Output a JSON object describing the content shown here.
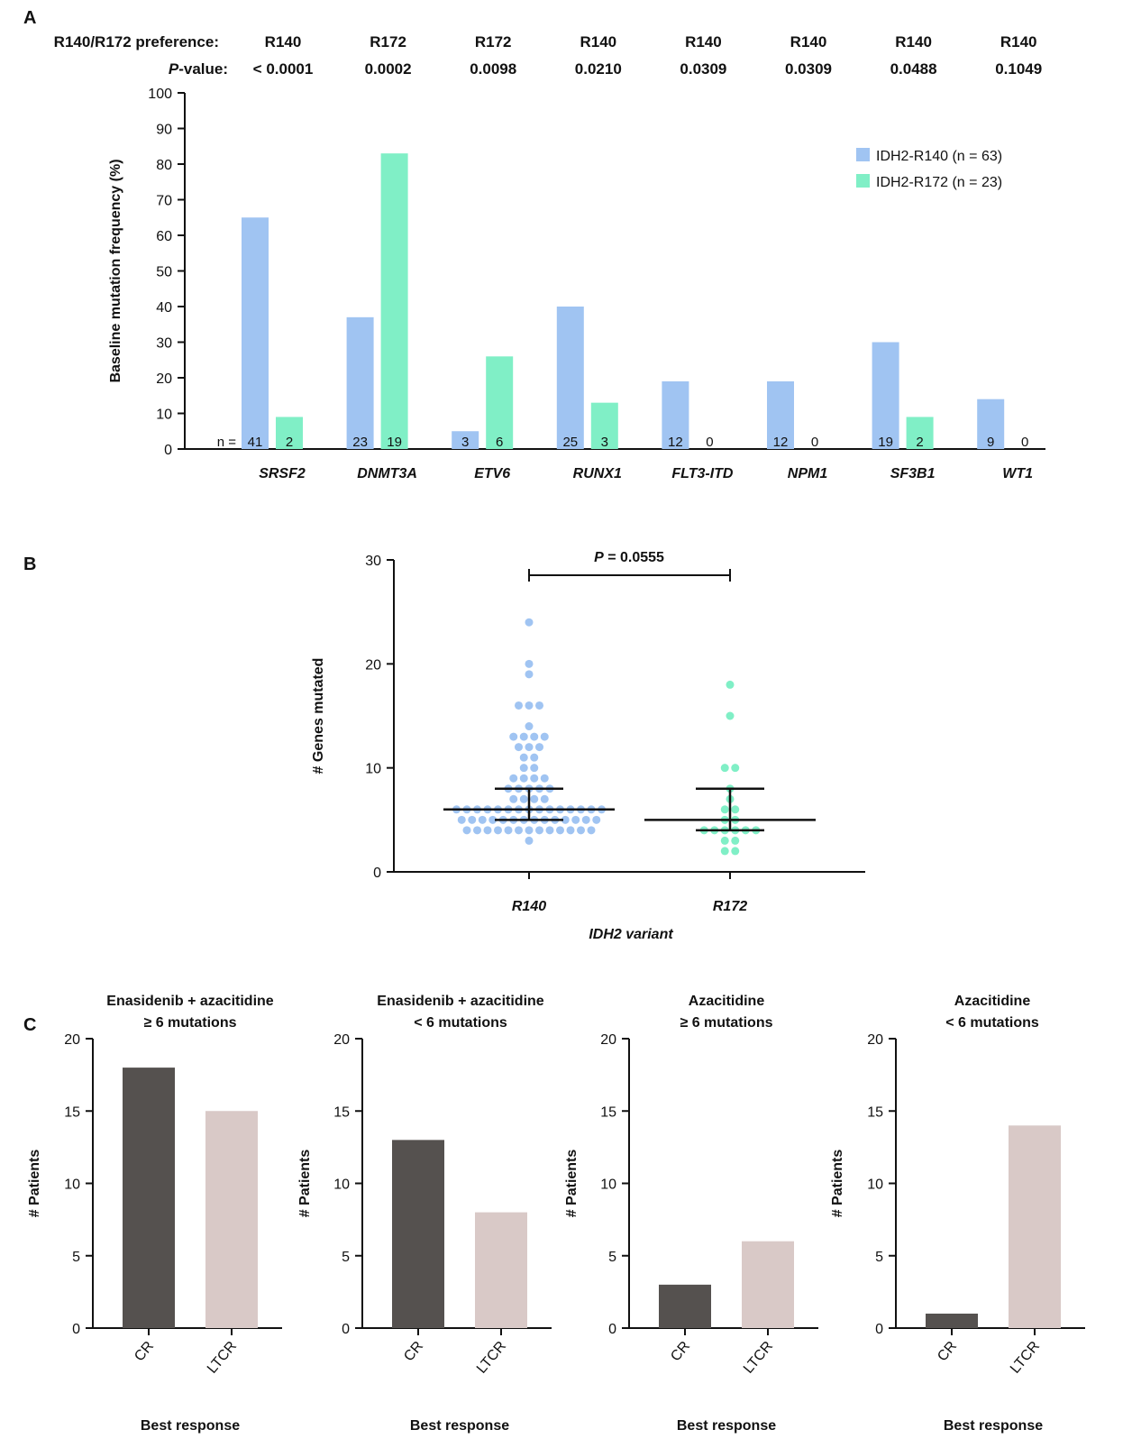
{
  "panel_letters": [
    "A",
    "B",
    "C"
  ],
  "chart_data": [
    {
      "type": "bar",
      "panel": "A",
      "ylabel": "Baseline mutation frequency (%)",
      "ylim": [
        0,
        100
      ],
      "yticks": [
        0,
        10,
        20,
        30,
        40,
        50,
        60,
        70,
        80,
        90,
        100
      ],
      "header": {
        "pref_label": "R140/R172 preference:",
        "p_label_italic": "P",
        "p_label_rest": "-value:",
        "n_prefix": "n ="
      },
      "categories": [
        "SRSF2",
        "DNMT3A",
        "ETV6",
        "RUNX1",
        "FLT3-ITD",
        "NPM1",
        "SF3B1",
        "WT1"
      ],
      "preference": [
        "R140",
        "R172",
        "R172",
        "R140",
        "R140",
        "R140",
        "R140",
        "R140"
      ],
      "p_values": [
        "< 0.0001",
        "0.0002",
        "0.0098",
        "0.0210",
        "0.0309",
        "0.0309",
        "0.0488",
        "0.1049"
      ],
      "series": [
        {
          "name": "IDH2-R140 (n = 63)",
          "color": "#a0c4f2",
          "values": [
            65,
            37,
            5,
            40,
            19,
            19,
            30,
            14
          ],
          "counts": [
            "41",
            "23",
            "3",
            "25",
            "12",
            "12",
            "19",
            "9"
          ]
        },
        {
          "name": "IDH2-R172 (n = 23)",
          "color": "#80efc6",
          "values": [
            9,
            83,
            26,
            13,
            0,
            0,
            9,
            0
          ],
          "counts": [
            "2",
            "19",
            "6",
            "3",
            "0",
            "0",
            "2",
            "0"
          ]
        }
      ],
      "legend_position": "top-right"
    },
    {
      "type": "scatter",
      "panel": "B",
      "ylabel": "# Genes mutated",
      "xlabel": "IDH2 variant",
      "ylim": [
        0,
        30
      ],
      "yticks": [
        0,
        10,
        20,
        30
      ],
      "categories": [
        "R140",
        "R172"
      ],
      "p_label_italic": "P",
      "p_label_rest": " = 0.0555",
      "groups": [
        {
          "name": "R140",
          "color": "#a0c4f2",
          "median": 6,
          "q1": 5,
          "q3": 8,
          "values": [
            3,
            4,
            4,
            4,
            4,
            4,
            4,
            4,
            4,
            4,
            4,
            4,
            4,
            4,
            5,
            5,
            5,
            5,
            5,
            5,
            5,
            5,
            5,
            5,
            5,
            5,
            5,
            5,
            6,
            6,
            6,
            6,
            6,
            6,
            6,
            6,
            6,
            6,
            6,
            6,
            6,
            6,
            6,
            7,
            7,
            7,
            7,
            8,
            8,
            8,
            8,
            8,
            9,
            9,
            9,
            9,
            10,
            10,
            11,
            11,
            12,
            12,
            12,
            13,
            13,
            13,
            13,
            14,
            16,
            16,
            16,
            19,
            20,
            24
          ]
        },
        {
          "name": "R172",
          "color": "#80efc6",
          "median": 5,
          "q1": 4,
          "q3": 8,
          "values": [
            2,
            2,
            3,
            3,
            4,
            4,
            4,
            4,
            4,
            4,
            5,
            5,
            6,
            6,
            7,
            8,
            10,
            10,
            15,
            18
          ]
        }
      ]
    },
    {
      "type": "bar",
      "panel": "C1",
      "title": [
        "Enasidenib + azacitidine",
        "≥ 6 mutations"
      ],
      "xlabel": "Best response",
      "ylabel": "# Patients",
      "ylim": [
        0,
        20
      ],
      "yticks": [
        0,
        5,
        10,
        15,
        20
      ],
      "categories": [
        "CR",
        "LTCR"
      ],
      "values": [
        18,
        15
      ],
      "colors": [
        "#55514f",
        "#d9c9c7"
      ]
    },
    {
      "type": "bar",
      "panel": "C2",
      "title": [
        "Enasidenib + azacitidine",
        "< 6 mutations"
      ],
      "xlabel": "Best response",
      "ylabel": "# Patients",
      "ylim": [
        0,
        20
      ],
      "yticks": [
        0,
        5,
        10,
        15,
        20
      ],
      "categories": [
        "CR",
        "LTCR"
      ],
      "values": [
        13,
        8
      ],
      "colors": [
        "#55514f",
        "#d9c9c7"
      ]
    },
    {
      "type": "bar",
      "panel": "C3",
      "title": [
        "Azacitidine",
        "≥ 6 mutations"
      ],
      "xlabel": "Best response",
      "ylabel": "# Patients",
      "ylim": [
        0,
        20
      ],
      "yticks": [
        0,
        5,
        10,
        15,
        20
      ],
      "categories": [
        "CR",
        "LTCR"
      ],
      "values": [
        3,
        6
      ],
      "colors": [
        "#55514f",
        "#d9c9c7"
      ]
    },
    {
      "type": "bar",
      "panel": "C4",
      "title": [
        "Azacitidine",
        "< 6 mutations"
      ],
      "xlabel": "Best response",
      "ylabel": "# Patients",
      "ylim": [
        0,
        20
      ],
      "yticks": [
        0,
        5,
        10,
        15,
        20
      ],
      "categories": [
        "CR",
        "LTCR"
      ],
      "values": [
        1,
        14
      ],
      "colors": [
        "#55514f",
        "#d9c9c7"
      ]
    }
  ]
}
